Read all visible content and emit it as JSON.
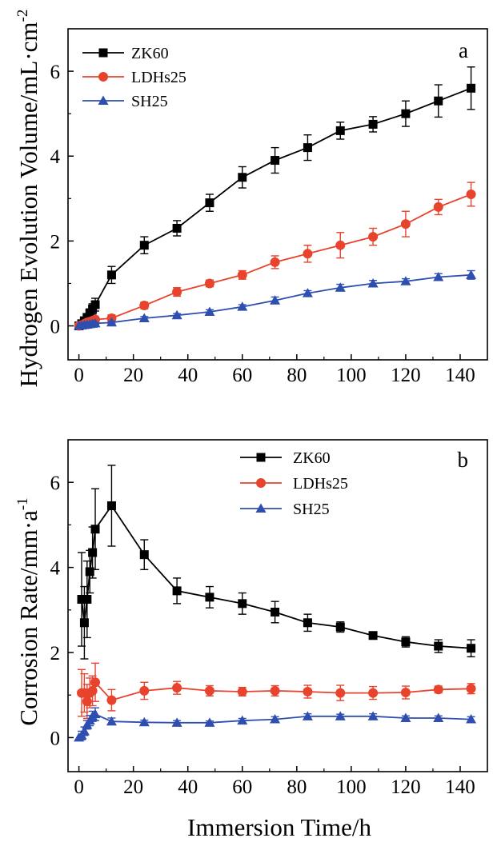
{
  "chart_data": [
    {
      "type": "line",
      "panel": "a",
      "ylabel": "Hydrogen Evolution Volume/mL·cm",
      "ylabel_sup": "-2",
      "xlim": [
        -4,
        150
      ],
      "ylim": [
        -0.8,
        7
      ],
      "xticks": [
        0,
        20,
        40,
        60,
        80,
        100,
        120,
        140
      ],
      "yticks": [
        0,
        2,
        4,
        6
      ],
      "legend_position": "top-left",
      "series": [
        {
          "name": "ZK60",
          "color": "#000000",
          "marker": "square",
          "x": [
            0,
            1,
            2,
            3,
            4,
            5,
            6,
            12,
            24,
            36,
            48,
            60,
            72,
            84,
            96,
            108,
            120,
            132,
            144
          ],
          "y": [
            0,
            0.05,
            0.12,
            0.2,
            0.3,
            0.4,
            0.5,
            1.2,
            1.9,
            2.3,
            2.9,
            3.5,
            3.9,
            4.2,
            4.6,
            4.75,
            5.0,
            5.3,
            5.6
          ],
          "err": [
            0,
            0.03,
            0.05,
            0.06,
            0.1,
            0.12,
            0.15,
            0.2,
            0.2,
            0.18,
            0.2,
            0.25,
            0.3,
            0.3,
            0.2,
            0.18,
            0.3,
            0.38,
            0.5
          ]
        },
        {
          "name": "LDHs25",
          "color": "#e8432d",
          "marker": "circle",
          "x": [
            0,
            1,
            2,
            3,
            4,
            5,
            6,
            12,
            24,
            36,
            48,
            60,
            72,
            84,
            96,
            108,
            120,
            132,
            144
          ],
          "y": [
            0,
            0.02,
            0.05,
            0.08,
            0.1,
            0.12,
            0.15,
            0.18,
            0.48,
            0.8,
            1.0,
            1.2,
            1.5,
            1.7,
            1.9,
            2.1,
            2.4,
            2.8,
            3.1
          ],
          "err": [
            0,
            0.02,
            0.03,
            0.04,
            0.05,
            0.05,
            0.06,
            0.08,
            0.08,
            0.1,
            0.08,
            0.1,
            0.15,
            0.2,
            0.3,
            0.2,
            0.3,
            0.18,
            0.28
          ]
        },
        {
          "name": "SH25",
          "color": "#2e4fb0",
          "marker": "triangle",
          "x": [
            0,
            1,
            2,
            3,
            4,
            5,
            6,
            12,
            24,
            36,
            48,
            60,
            72,
            84,
            96,
            108,
            120,
            132,
            144
          ],
          "y": [
            0,
            0.01,
            0.02,
            0.03,
            0.04,
            0.05,
            0.06,
            0.08,
            0.18,
            0.25,
            0.33,
            0.45,
            0.6,
            0.77,
            0.9,
            1.0,
            1.05,
            1.15,
            1.2
          ],
          "err": [
            0,
            0.01,
            0.01,
            0.02,
            0.02,
            0.02,
            0.02,
            0.03,
            0.04,
            0.04,
            0.05,
            0.05,
            0.08,
            0.06,
            0.08,
            0.07,
            0.06,
            0.08,
            0.1
          ]
        }
      ]
    },
    {
      "type": "line",
      "panel": "b",
      "ylabel": "Corrosion Rate/mm·a",
      "ylabel_sup": "-1",
      "xlabel": "Immersion Time/h",
      "xlim": [
        -4,
        150
      ],
      "ylim": [
        -0.8,
        7
      ],
      "xticks": [
        0,
        20,
        40,
        60,
        80,
        100,
        120,
        140
      ],
      "yticks": [
        0,
        2,
        4,
        6
      ],
      "legend_position": "top-center",
      "series": [
        {
          "name": "ZK60",
          "color": "#000000",
          "marker": "square",
          "x": [
            1,
            2,
            3,
            4,
            5,
            6,
            12,
            24,
            36,
            48,
            60,
            72,
            84,
            96,
            108,
            120,
            132,
            144
          ],
          "y": [
            3.25,
            2.7,
            3.25,
            3.9,
            4.35,
            4.9,
            5.45,
            4.3,
            3.45,
            3.3,
            3.15,
            2.95,
            2.7,
            2.6,
            2.4,
            2.25,
            2.15,
            2.1
          ],
          "err": [
            1.1,
            0.85,
            0.9,
            0.5,
            0.6,
            0.95,
            0.95,
            0.35,
            0.3,
            0.25,
            0.25,
            0.25,
            0.2,
            0.12,
            0.08,
            0.12,
            0.15,
            0.2
          ]
        },
        {
          "name": "LDHs25",
          "color": "#e8432d",
          "marker": "circle",
          "x": [
            1,
            2,
            3,
            4,
            5,
            6,
            12,
            24,
            36,
            48,
            60,
            72,
            84,
            96,
            108,
            120,
            132,
            144
          ],
          "y": [
            1.05,
            1.05,
            0.85,
            1.05,
            1.1,
            1.3,
            0.88,
            1.1,
            1.17,
            1.1,
            1.08,
            1.1,
            1.08,
            1.05,
            1.05,
            1.06,
            1.13,
            1.15
          ],
          "err": [
            0.55,
            0.45,
            0.4,
            0.35,
            0.35,
            0.45,
            0.25,
            0.2,
            0.15,
            0.12,
            0.1,
            0.12,
            0.15,
            0.18,
            0.15,
            0.15,
            0.08,
            0.12
          ]
        },
        {
          "name": "SH25",
          "color": "#2e4fb0",
          "marker": "triangle",
          "x": [
            0,
            1,
            2,
            3,
            4,
            5,
            6,
            12,
            24,
            36,
            48,
            60,
            72,
            84,
            96,
            108,
            120,
            132,
            144
          ],
          "y": [
            0,
            0.05,
            0.15,
            0.3,
            0.4,
            0.5,
            0.55,
            0.38,
            0.36,
            0.35,
            0.35,
            0.4,
            0.43,
            0.5,
            0.5,
            0.5,
            0.46,
            0.46,
            0.43
          ],
          "err": [
            0,
            0.1,
            0.1,
            0.1,
            0.12,
            0.12,
            0.15,
            0.08,
            0.05,
            0.05,
            0.04,
            0.05,
            0.06,
            0.06,
            0.05,
            0.06,
            0.05,
            0.05,
            0.06
          ]
        }
      ]
    }
  ]
}
